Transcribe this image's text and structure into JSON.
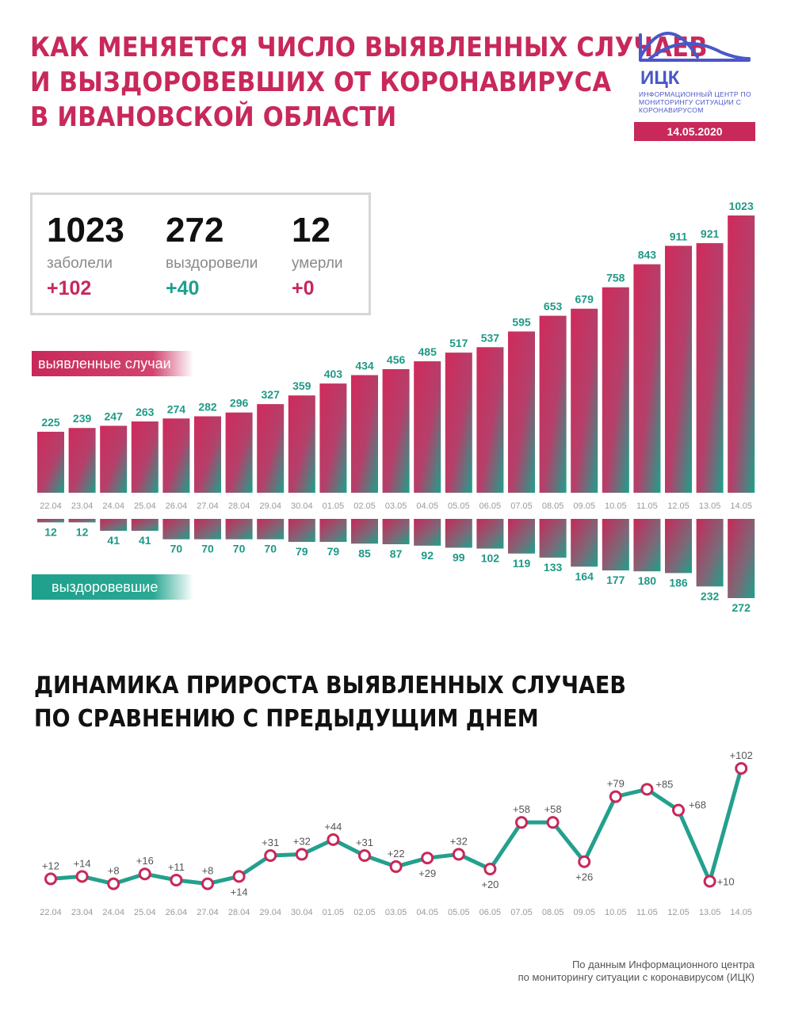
{
  "header": {
    "title_lines": [
      "Как меняется число выявленных случаев",
      "и выздоровевших от коронавируса",
      "в Ивановской области"
    ],
    "logo_name": "ИЦК",
    "logo_caption": "Информационный центр по мониторингу ситуации с коронавирусом",
    "date": "14.05.2020"
  },
  "stats": {
    "cases": {
      "value": "1023",
      "label": "заболели",
      "delta": "+102"
    },
    "recovered": {
      "value": "272",
      "label": "выздоровели",
      "delta": "+40"
    },
    "deaths": {
      "value": "12",
      "label": "умерли",
      "delta": "+0"
    }
  },
  "labels": {
    "cases_series": "выявленные случаи",
    "recovered_series": "выздоровевшие"
  },
  "colors": {
    "accent_red": "#c8285a",
    "accent_teal": "#1ea08c",
    "logo_blue": "#4a57c7"
  },
  "second_title_lines": [
    "Динамика прироста выявленных случаев",
    "по сравнению с предыдущим днем"
  ],
  "footer_lines": [
    "По данным Информационного центра",
    "по мониторингу ситуации с коронавирусом (ИЦК)"
  ],
  "chart_data": [
    {
      "type": "bar",
      "categories": [
        "22.04",
        "23.04",
        "24.04",
        "25.04",
        "26.04",
        "27.04",
        "28.04",
        "29.04",
        "30.04",
        "01.05",
        "02.05",
        "03.05",
        "04.05",
        "05.05",
        "06.05",
        "07.05",
        "08.05",
        "09.05",
        "10.05",
        "11.05",
        "12.05",
        "13.05",
        "14.05"
      ],
      "series": [
        {
          "name": "выявленные случаи",
          "values": [
            225,
            239,
            247,
            263,
            274,
            282,
            296,
            327,
            359,
            403,
            434,
            456,
            485,
            517,
            537,
            595,
            653,
            679,
            758,
            843,
            911,
            921,
            1023
          ]
        },
        {
          "name": "выздоровевшие",
          "values": [
            12,
            12,
            41,
            41,
            70,
            70,
            70,
            70,
            79,
            79,
            85,
            87,
            92,
            99,
            102,
            119,
            133,
            164,
            177,
            180,
            186,
            232,
            272
          ]
        }
      ],
      "title": "",
      "xlabel": "",
      "ylabel": ""
    },
    {
      "type": "line",
      "categories": [
        "22.04",
        "23.04",
        "24.04",
        "25.04",
        "26.04",
        "27.04",
        "28.04",
        "29.04",
        "30.04",
        "01.05",
        "02.05",
        "03.05",
        "04.05",
        "05.05",
        "06.05",
        "07.05",
        "08.05",
        "09.05",
        "10.05",
        "11.05",
        "12.05",
        "13.05",
        "14.05"
      ],
      "values": [
        12,
        14,
        8,
        16,
        11,
        8,
        14,
        31,
        32,
        44,
        31,
        22,
        29,
        32,
        20,
        58,
        58,
        26,
        79,
        85,
        68,
        10,
        102
      ],
      "value_labels": [
        "+12",
        "+14",
        "+8",
        "+16",
        "+11",
        "+8",
        "+14",
        "+31",
        "+32",
        "+44",
        "+31",
        "+22",
        "+29",
        "+32",
        "+20",
        "+58",
        "+58",
        "+26",
        "+79",
        "+85",
        "+68",
        "+10",
        "+102"
      ],
      "title": "Динамика прироста выявленных случаев по сравнению с предыдущим днем",
      "xlabel": "",
      "ylabel": ""
    }
  ]
}
